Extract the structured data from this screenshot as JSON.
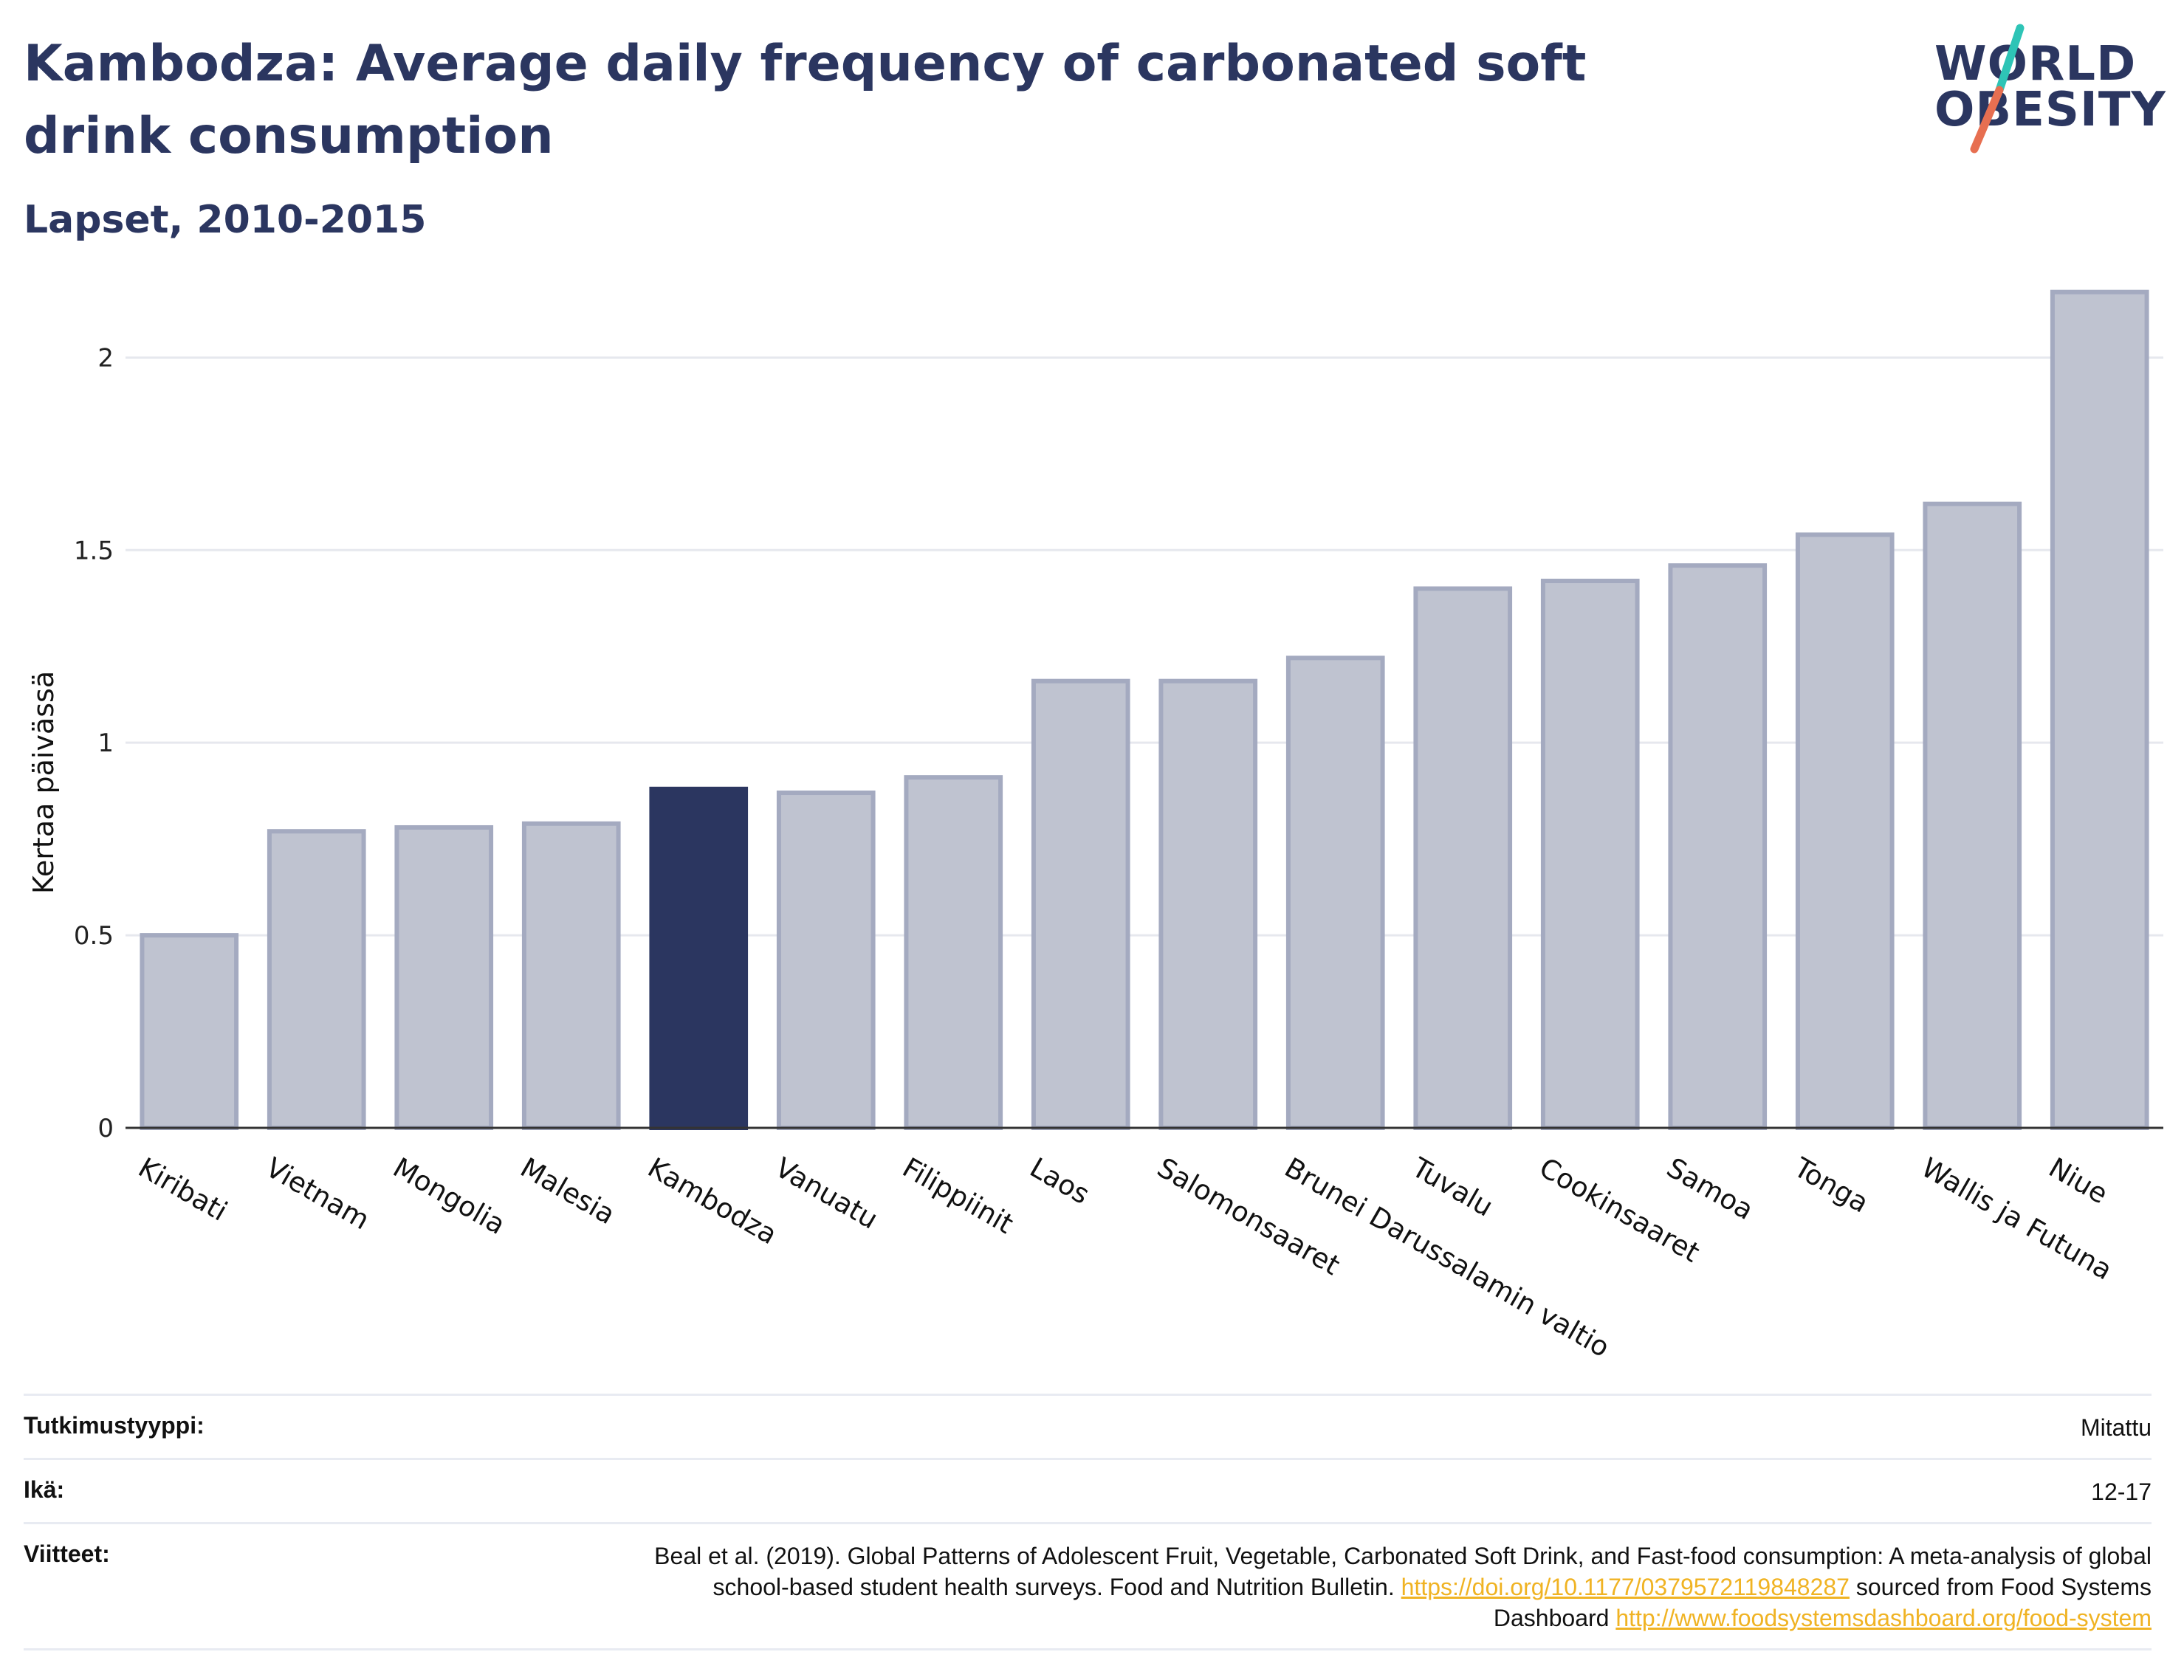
{
  "header": {
    "title": "Kambodza: Average daily frequency of carbonated soft drink consumption",
    "subtitle": "Lapset, 2010-2015"
  },
  "logo": {
    "line1": "WORLD",
    "line2": "OBESITY",
    "slash_colors": [
      "#2ec4b6",
      "#e76f51"
    ]
  },
  "chart_data": {
    "type": "bar",
    "title": "Kambodza: Average daily frequency of carbonated soft drink consumption",
    "subtitle": "Lapset, 2010-2015",
    "ylabel": "Kertaa päivässä",
    "xlabel": "",
    "ylim": [
      0,
      2.2
    ],
    "yticks": [
      0,
      0.5,
      1,
      1.5,
      2
    ],
    "ytick_labels": [
      "0",
      "0.5",
      "1",
      "1.5",
      "2"
    ],
    "grid": true,
    "categories": [
      "Kiribati",
      "Vietnam",
      "Mongolia",
      "Malesia",
      "Kambodza",
      "Vanuatu",
      "Filippiinit",
      "Laos",
      "Salomonsaaret",
      "Brunei Darussalamin valtio",
      "Tuvalu",
      "Cookinsaaret",
      "Samoa",
      "Tonga",
      "Wallis ja Futuna",
      "Niue"
    ],
    "values": [
      0.5,
      0.77,
      0.78,
      0.79,
      0.88,
      0.87,
      0.91,
      1.16,
      1.16,
      1.22,
      1.4,
      1.42,
      1.46,
      1.54,
      1.62,
      2.17
    ],
    "highlight": "Kambodza",
    "colors": {
      "bar": "#bfc3d0",
      "bar_border": "#a4aac0",
      "highlight": "#2b3660"
    }
  },
  "meta": {
    "study_type_label": "Tutkimustyyppi:",
    "study_type_value": "Mitattu",
    "age_label": "Ikä:",
    "age_value": "12-17",
    "refs_label": "Viitteet:",
    "refs_text1": "Beal et al. (2019). Global Patterns of Adolescent Fruit, Vegetable, Carbonated Soft Drink, and Fast-food consumption: A meta-analysis of global school-based student health surveys. Food and Nutrition Bulletin.",
    "refs_link1": "https://doi.org/10.1177/0379572119848287",
    "refs_text2": "sourced from Food Systems Dashboard",
    "refs_link2": "http://www.foodsystemsdashboard.org/food-system"
  }
}
